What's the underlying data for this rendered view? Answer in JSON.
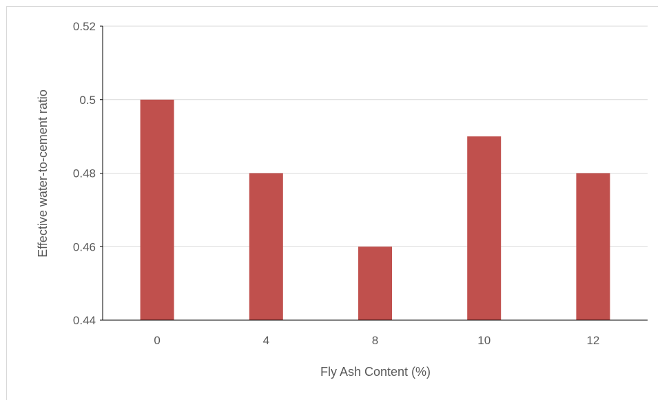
{
  "chart_data": {
    "type": "bar",
    "categories": [
      "0",
      "4",
      "8",
      "10",
      "12"
    ],
    "values": [
      0.5,
      0.48,
      0.46,
      0.49,
      0.48
    ],
    "xlabel": "Fly Ash Content (%)",
    "ylabel": "Effective water-to-cement ratio",
    "ylim": [
      0.44,
      0.52
    ],
    "yticks": [
      "0.44",
      "0.46",
      "0.48",
      "0.5",
      "0.52"
    ],
    "grid": true,
    "bar_color": "#c0504d",
    "gridline_color": "#d9d9d9",
    "axis_color": "#000000"
  }
}
